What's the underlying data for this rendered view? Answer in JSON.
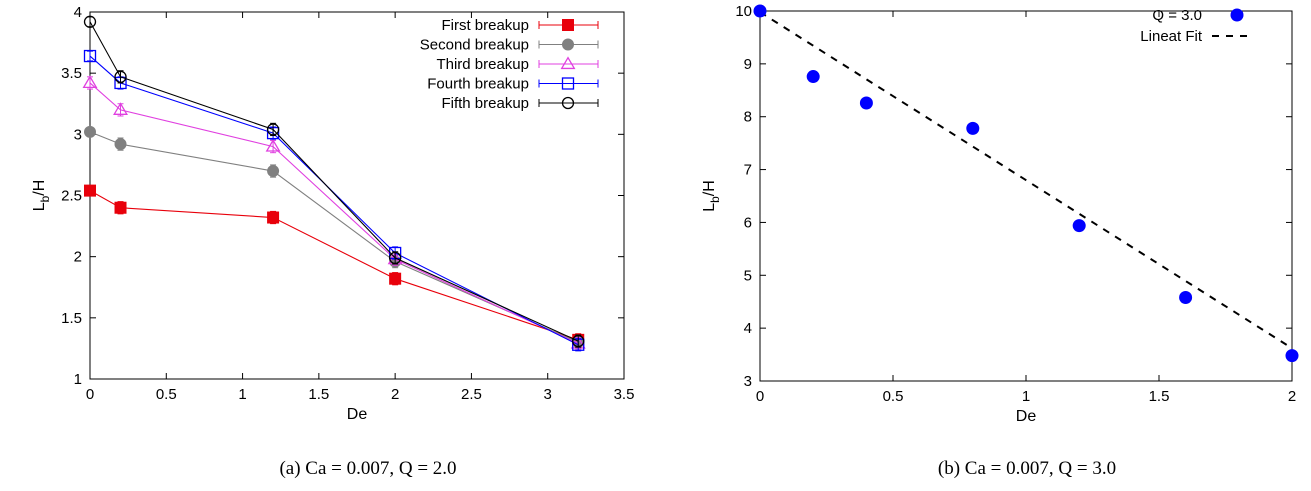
{
  "chart_data": [
    {
      "type": "line",
      "caption": "(a)   Ca = 0.007, Q = 2.0",
      "xlabel": "De",
      "ylabel_main": "L",
      "ylabel_sub": "b",
      "ylabel_tail": "/H",
      "xlim": [
        0,
        3.5
      ],
      "ylim": [
        1,
        4
      ],
      "xticks": [
        0,
        0.5,
        1,
        1.5,
        2,
        2.5,
        3,
        3.5
      ],
      "xtick_labels": [
        "0",
        "0.5",
        "1",
        "1.5",
        "2",
        "2.5",
        "3",
        "3.5"
      ],
      "yticks": [
        1,
        1.5,
        2,
        2.5,
        3,
        3.5,
        4
      ],
      "ytick_labels": [
        "1",
        "1.5",
        "2",
        "2.5",
        "3",
        "3.5",
        "4"
      ],
      "grid": false,
      "legend_position": "top-right",
      "x": [
        0,
        0.2,
        1.2,
        2,
        3.2
      ],
      "series": [
        {
          "name": "First breakup",
          "color": "#e8000b",
          "marker": "filled-square",
          "values": [
            2.54,
            2.4,
            2.32,
            1.82,
            1.32
          ],
          "errors": [
            0.04,
            0.05,
            0.05,
            0.05,
            0.05
          ]
        },
        {
          "name": "Second breakup",
          "color": "#808080",
          "marker": "filled-circle",
          "values": [
            3.02,
            2.92,
            2.7,
            1.96,
            1.3
          ],
          "errors": [
            0.03,
            0.05,
            0.05,
            0.05,
            0.05
          ]
        },
        {
          "name": "Third breakup",
          "color": "#e040e0",
          "marker": "open-triangle",
          "values": [
            3.42,
            3.2,
            2.9,
            1.98,
            1.29
          ],
          "errors": [
            0.05,
            0.05,
            0.05,
            0.05,
            0.05
          ]
        },
        {
          "name": "Fourth breakup",
          "color": "#0000ff",
          "marker": "open-square",
          "values": [
            3.64,
            3.42,
            3.01,
            2.03,
            1.28
          ],
          "errors": [
            0.04,
            0.05,
            0.05,
            0.05,
            0.05
          ]
        },
        {
          "name": "Fifth breakup",
          "color": "#000000",
          "marker": "open-circle",
          "values": [
            3.92,
            3.47,
            3.04,
            1.99,
            1.31
          ],
          "errors": [
            0.04,
            0.05,
            0.05,
            0.05,
            0.05
          ]
        }
      ]
    },
    {
      "type": "scatter",
      "caption": "(b)   Ca = 0.007, Q = 3.0",
      "xlabel": "De",
      "ylabel_main": "L",
      "ylabel_sub": "b",
      "ylabel_tail": "/H",
      "xlim": [
        0,
        2
      ],
      "ylim": [
        3,
        10
      ],
      "xticks": [
        0,
        0.5,
        1,
        1.5,
        2
      ],
      "xtick_labels": [
        "0",
        "0.5",
        "1",
        "1.5",
        "2"
      ],
      "yticks": [
        3,
        4,
        5,
        6,
        7,
        8,
        9,
        10
      ],
      "ytick_labels": [
        "3",
        "4",
        "5",
        "6",
        "7",
        "8",
        "9",
        "10"
      ],
      "grid": false,
      "legend_position": "top-right",
      "series": [
        {
          "name": "Q = 3.0",
          "color": "#0000ff",
          "marker": "filled-circle",
          "x": [
            0,
            0.2,
            0.4,
            0.8,
            1.2,
            1.6,
            2.0
          ],
          "values": [
            10.0,
            8.76,
            8.26,
            7.78,
            5.94,
            4.58,
            3.48
          ]
        },
        {
          "name": "Lineat Fit",
          "color": "#000000",
          "line": "dashed",
          "x": [
            0,
            2
          ],
          "values": [
            9.98,
            3.62
          ]
        }
      ]
    }
  ]
}
